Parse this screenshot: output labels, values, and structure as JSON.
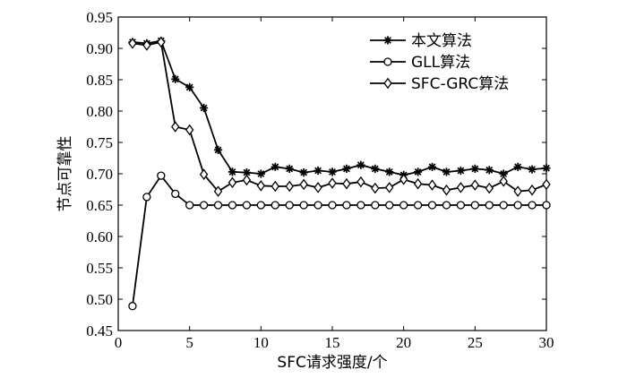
{
  "chart_data": {
    "type": "line",
    "xlabel": "SFC请求强度/个",
    "ylabel": "节点可靠性",
    "xlim": [
      0,
      30
    ],
    "ylim": [
      0.45,
      0.95
    ],
    "xticks": [
      0,
      5,
      10,
      15,
      20,
      25,
      30
    ],
    "yticks": [
      "0.45",
      "0.50",
      "0.55",
      "0.60",
      "0.65",
      "0.70",
      "0.75",
      "0.80",
      "0.85",
      "0.90",
      "0.95"
    ],
    "grid": false,
    "legend_position": "top-right",
    "x": [
      1,
      2,
      3,
      4,
      5,
      6,
      7,
      8,
      9,
      10,
      11,
      12,
      13,
      14,
      15,
      16,
      17,
      18,
      19,
      20,
      21,
      22,
      23,
      24,
      25,
      26,
      27,
      28,
      29,
      30
    ],
    "series": [
      {
        "name": "本文算法",
        "marker": "asterisk",
        "values": [
          0.91,
          0.908,
          0.912,
          0.851,
          0.838,
          0.805,
          0.738,
          0.703,
          0.702,
          0.7,
          0.711,
          0.708,
          0.702,
          0.705,
          0.703,
          0.708,
          0.714,
          0.708,
          0.703,
          0.698,
          0.703,
          0.711,
          0.703,
          0.705,
          0.708,
          0.706,
          0.7,
          0.711,
          0.707,
          0.709
        ]
      },
      {
        "name": "GLL算法",
        "marker": "circle",
        "values": [
          0.489,
          0.663,
          0.697,
          0.668,
          0.65,
          0.65,
          0.65,
          0.65,
          0.65,
          0.65,
          0.65,
          0.65,
          0.65,
          0.65,
          0.65,
          0.65,
          0.65,
          0.65,
          0.65,
          0.65,
          0.65,
          0.65,
          0.65,
          0.65,
          0.65,
          0.65,
          0.65,
          0.65,
          0.65,
          0.65
        ]
      },
      {
        "name": "SFC-GRC算法",
        "marker": "diamond",
        "values": [
          0.908,
          0.905,
          0.91,
          0.775,
          0.77,
          0.699,
          0.672,
          0.686,
          0.69,
          0.681,
          0.68,
          0.68,
          0.683,
          0.678,
          0.685,
          0.684,
          0.687,
          0.677,
          0.678,
          0.691,
          0.684,
          0.682,
          0.674,
          0.678,
          0.682,
          0.677,
          0.688,
          0.672,
          0.674,
          0.683
        ]
      }
    ]
  }
}
